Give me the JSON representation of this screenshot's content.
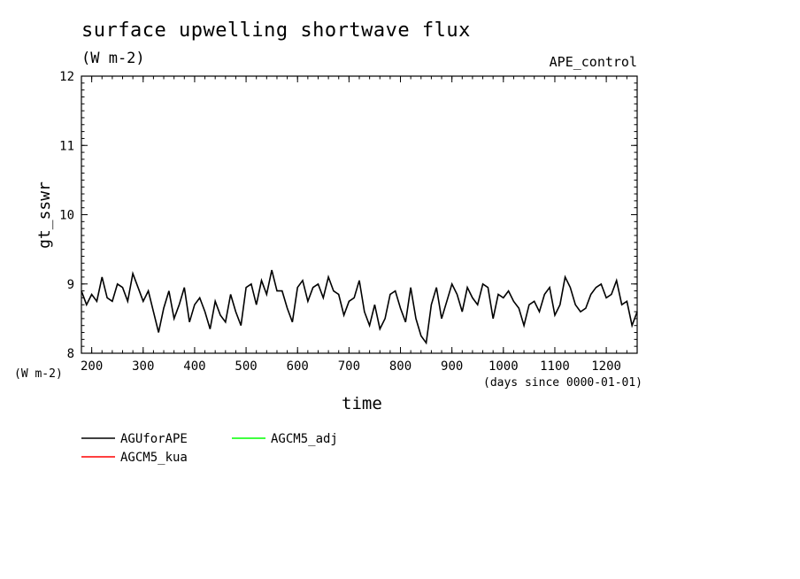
{
  "header": {
    "title": "surface upwelling shortwave flux",
    "units": "(W m-2)",
    "experiment": "APE_control"
  },
  "axes": {
    "ylabel": "gt_sswr",
    "y_units": "(W m-2)",
    "xlabel": "time",
    "x_units": "(days since 0000-01-01)",
    "xticks": [
      "200",
      "300",
      "400",
      "500",
      "600",
      "700",
      "800",
      "900",
      "1000",
      "1100",
      "1200"
    ],
    "yticks": [
      "8",
      "9",
      "10",
      "11",
      "12"
    ]
  },
  "legend": {
    "items": [
      {
        "label": "AGUforAPE",
        "color": "#000000"
      },
      {
        "label": "AGCM5_adj",
        "color": "#00ff00"
      },
      {
        "label": "AGCM5_kua",
        "color": "#ff0000"
      }
    ]
  },
  "chart_data": {
    "type": "line",
    "title": "surface upwelling shortwave flux",
    "xlabel": "time",
    "ylabel": "gt_sswr",
    "xlim": [
      180,
      1260
    ],
    "ylim": [
      8,
      12
    ],
    "grid": false,
    "legend_position": "bottom-left",
    "series": [
      {
        "name": "AGUforAPE",
        "color": "#000000",
        "x": [
          180,
          190,
          200,
          210,
          220,
          230,
          240,
          250,
          260,
          270,
          280,
          290,
          300,
          310,
          320,
          330,
          340,
          350,
          360,
          370,
          380,
          390,
          400,
          410,
          420,
          430,
          440,
          450,
          460,
          470,
          480,
          490,
          500,
          510,
          520,
          530,
          540,
          550,
          560,
          570,
          580,
          590,
          600,
          610,
          620,
          630,
          640,
          650,
          660,
          670,
          680,
          690,
          700,
          710,
          720,
          730,
          740,
          750,
          760,
          770,
          780,
          790,
          800,
          810,
          820,
          830,
          840,
          850,
          860,
          870,
          880,
          890,
          900,
          910,
          920,
          930,
          940,
          950,
          960,
          970,
          980,
          990,
          1000,
          1010,
          1020,
          1030,
          1040,
          1050,
          1060,
          1070,
          1080,
          1090,
          1100,
          1110,
          1120,
          1130,
          1140,
          1150,
          1160,
          1170,
          1180,
          1190,
          1200,
          1210,
          1220,
          1230,
          1240,
          1250,
          1260
        ],
        "values": [
          8.9,
          8.7,
          8.85,
          8.75,
          9.1,
          8.8,
          8.75,
          9.0,
          8.95,
          8.75,
          9.15,
          8.95,
          8.75,
          8.9,
          8.6,
          8.3,
          8.65,
          8.9,
          8.5,
          8.7,
          8.95,
          8.45,
          8.7,
          8.8,
          8.6,
          8.35,
          8.75,
          8.55,
          8.45,
          8.85,
          8.6,
          8.4,
          8.95,
          9.0,
          8.7,
          9.05,
          8.85,
          9.2,
          8.9,
          8.9,
          8.65,
          8.45,
          8.95,
          9.05,
          8.75,
          8.95,
          9.0,
          8.8,
          9.1,
          8.9,
          8.85,
          8.55,
          8.75,
          8.8,
          9.05,
          8.6,
          8.4,
          8.7,
          8.35,
          8.5,
          8.85,
          8.9,
          8.65,
          8.45,
          8.95,
          8.5,
          8.25,
          8.15,
          8.7,
          8.95,
          8.5,
          8.75,
          9.0,
          8.85,
          8.6,
          8.95,
          8.8,
          8.7,
          9.0,
          8.95,
          8.5,
          8.85,
          8.8,
          8.9,
          8.75,
          8.65,
          8.4,
          8.7,
          8.75,
          8.6,
          8.85,
          8.95,
          8.55,
          8.7,
          9.1,
          8.95,
          8.7,
          8.6,
          8.65,
          8.85,
          8.95,
          9.0,
          8.8,
          8.85,
          9.05,
          8.7,
          8.75,
          8.4,
          8.6
        ]
      },
      {
        "name": "AGCM5_adj",
        "color": "#00ff00",
        "x": [],
        "values": []
      },
      {
        "name": "AGCM5_kua",
        "color": "#ff0000",
        "x": [],
        "values": []
      }
    ]
  }
}
